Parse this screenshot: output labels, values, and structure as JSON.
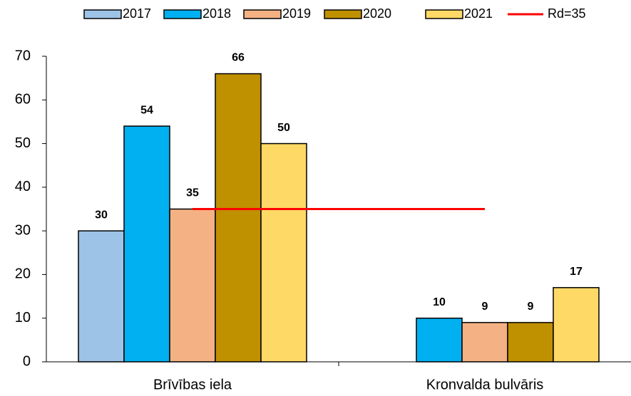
{
  "chart_data": {
    "type": "bar",
    "categories": [
      "Brīvības iela",
      "Kronvalda bulvāris"
    ],
    "series": [
      {
        "name": "2017",
        "color": "#9dc3e6",
        "values": [
          30,
          null
        ]
      },
      {
        "name": "2018",
        "color": "#00b0f0",
        "values": [
          54,
          10
        ]
      },
      {
        "name": "2019",
        "color": "#f4b183",
        "values": [
          35,
          9
        ]
      },
      {
        "name": "2020",
        "color": "#bf9000",
        "values": [
          66,
          9
        ]
      },
      {
        "name": "2021",
        "color": "#ffd966",
        "values": [
          50,
          17
        ]
      }
    ],
    "reference_line": {
      "name": "Rd=35",
      "value": 35,
      "color": "#ff0000"
    },
    "ylim": [
      0,
      70
    ],
    "yticks": [
      0,
      10,
      20,
      30,
      40,
      50,
      60,
      70
    ],
    "legend": "top",
    "grid": false
  }
}
